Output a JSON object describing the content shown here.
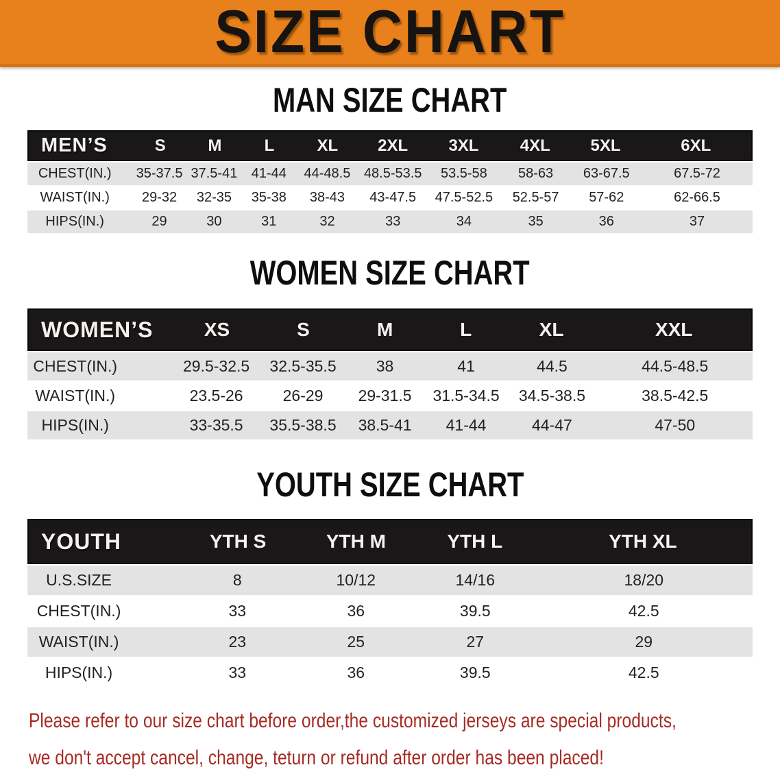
{
  "banner": {
    "title": "SIZE CHART"
  },
  "colors": {
    "banner_bg": "#e8811b",
    "table_header_bg": "#191717",
    "row_stripe": "#e3e3e3",
    "disclaimer_text": "#a62b24"
  },
  "sections": [
    {
      "heading": "MAN SIZE CHART",
      "table": {
        "label": "MEN’S",
        "columns": [
          "S",
          "M",
          "L",
          "XL",
          "2XL",
          "3XL",
          "4XL",
          "5XL",
          "6XL"
        ],
        "rows": [
          {
            "label": "CHEST(IN.)",
            "values": [
              "35-37.5",
              "37.5-41",
              "41-44",
              "44-48.5",
              "48.5-53.5",
              "53.5-58",
              "58-63",
              "63-67.5",
              "67.5-72"
            ]
          },
          {
            "label": "WAIST(IN.)",
            "values": [
              "29-32",
              "32-35",
              "35-38",
              "38-43",
              "43-47.5",
              "47.5-52.5",
              "52.5-57",
              "57-62",
              "62-66.5"
            ]
          },
          {
            "label": "HIPS(IN.)",
            "values": [
              "29",
              "30",
              "31",
              "32",
              "33",
              "34",
              "35",
              "36",
              "37"
            ]
          }
        ]
      }
    },
    {
      "heading": "WOMEN SIZE CHART",
      "table": {
        "label": "WOMEN’S",
        "columns": [
          "XS",
          "S",
          "M",
          "L",
          "XL",
          "XXL"
        ],
        "rows": [
          {
            "label": "CHEST(IN.)",
            "values": [
              "29.5-32.5",
              "32.5-35.5",
              "38",
              "41",
              "44.5",
              "44.5-48.5"
            ]
          },
          {
            "label": "WAIST(IN.)",
            "values": [
              "23.5-26",
              "26-29",
              "29-31.5",
              "31.5-34.5",
              "34.5-38.5",
              "38.5-42.5"
            ]
          },
          {
            "label": "HIPS(IN.)",
            "values": [
              "33-35.5",
              "35.5-38.5",
              "38.5-41",
              "41-44",
              "44-47",
              "47-50"
            ]
          }
        ]
      }
    },
    {
      "heading": "YOUTH SIZE CHART",
      "table": {
        "label": "YOUTH",
        "columns": [
          "YTH S",
          "YTH M",
          "YTH L",
          "YTH XL"
        ],
        "rows": [
          {
            "label": "U.S.SIZE",
            "values": [
              "8",
              "10/12",
              "14/16",
              "18/20"
            ]
          },
          {
            "label": "CHEST(IN.)",
            "values": [
              "33",
              "36",
              "39.5",
              "42.5"
            ]
          },
          {
            "label": "WAIST(IN.)",
            "values": [
              "23",
              "25",
              "27",
              "29"
            ]
          },
          {
            "label": "HIPS(IN.)",
            "values": [
              "33",
              "36",
              "39.5",
              "42.5"
            ]
          }
        ]
      }
    }
  ],
  "disclaimer": {
    "line1": "Please refer to our size chart before order,the customized jerseys are special products,",
    "line2": "we don't accept cancel, change, teturn or refund after order has been placed!"
  }
}
